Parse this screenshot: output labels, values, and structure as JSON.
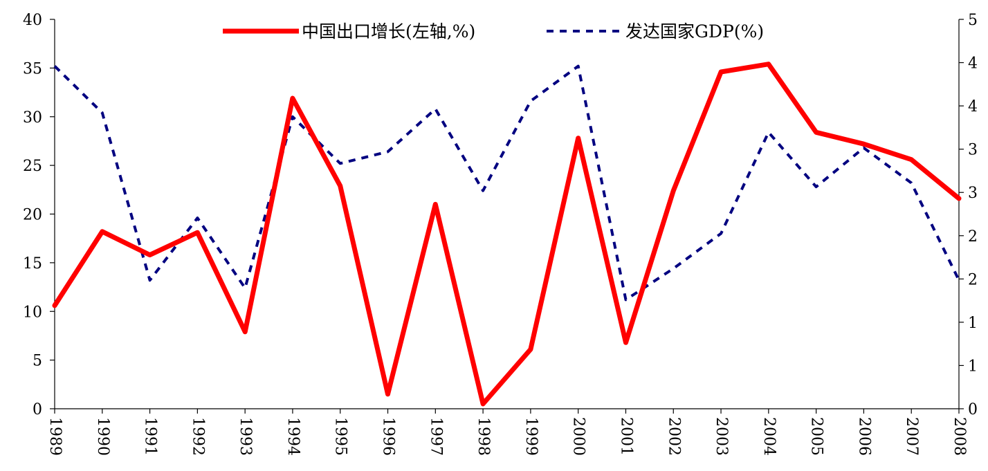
{
  "chart_data": {
    "type": "line",
    "categories": [
      "1989",
      "1990",
      "1991",
      "1992",
      "1993",
      "1994",
      "1995",
      "1996",
      "1997",
      "1998",
      "1999",
      "2000",
      "2001",
      "2002",
      "2003",
      "2004",
      "2005",
      "2006",
      "2007",
      "2008"
    ],
    "series": [
      {
        "name": "中国出口增长(左轴,%)",
        "axis": "left",
        "style": "solid",
        "color": "#ff0000",
        "values": [
          10.6,
          18.2,
          15.8,
          18.1,
          7.9,
          31.9,
          22.9,
          1.5,
          21.0,
          0.5,
          6.1,
          27.8,
          6.8,
          22.4,
          34.6,
          35.4,
          28.4,
          27.2,
          25.6,
          21.6
        ]
      },
      {
        "name": "发达国家GDP(%)",
        "axis": "right",
        "style": "dashed",
        "color": "#000080",
        "values": [
          4.4,
          3.8,
          1.65,
          2.45,
          1.55,
          3.75,
          3.15,
          3.3,
          3.85,
          2.8,
          3.95,
          4.4,
          1.4,
          1.8,
          2.25,
          3.55,
          2.85,
          3.35,
          2.9,
          1.65
        ]
      }
    ],
    "y_left": {
      "ylim": [
        0,
        40
      ],
      "ticks": [
        "0",
        "5",
        "10",
        "15",
        "20",
        "25",
        "30",
        "35",
        "40"
      ]
    },
    "y_right": {
      "ylim": [
        0,
        5
      ],
      "ticks": [
        "0",
        "1",
        "1",
        "2",
        "2",
        "3",
        "3",
        "4",
        "4",
        "5"
      ]
    },
    "legend_position": "top",
    "grid": false
  }
}
